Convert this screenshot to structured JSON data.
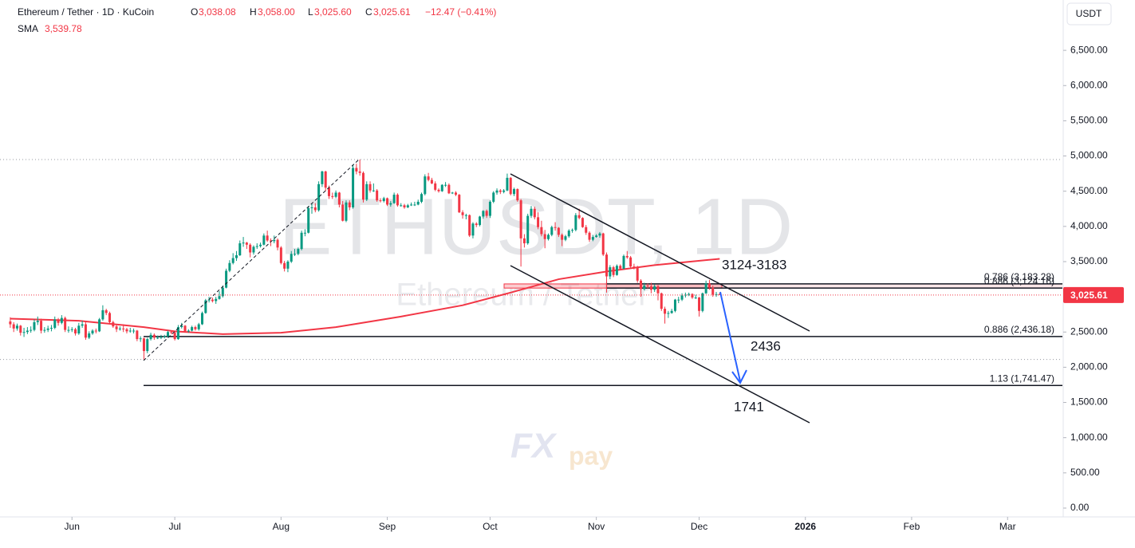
{
  "header": {
    "symbol": "Ethereum / Tether · 1D · KuCoin",
    "open_label": "O",
    "open": "3,038.08",
    "high_label": "H",
    "high": "3,058.00",
    "low_label": "L",
    "low": "3,025.60",
    "close_label": "C",
    "close": "3,025.61",
    "change": "−12.47 (−0.41%)",
    "sma_value": "3,539.78",
    "currency": "USDT"
  },
  "chart_data": {
    "type": "candlestick",
    "watermark": "ETHUSDT, 1D",
    "watermark_sub": "Ethereum / Tether",
    "logo_a": "FX",
    "logo_b": "pay",
    "up_color": "#089981",
    "down_color": "#f23645",
    "xlim": [
      -3,
      307
    ],
    "xticks": [
      {
        "value": 18,
        "label": "Jun"
      },
      {
        "value": 48,
        "label": "Jul"
      },
      {
        "value": 79,
        "label": "Aug"
      },
      {
        "value": 110,
        "label": "Sep"
      },
      {
        "value": 140,
        "label": "Oct"
      },
      {
        "value": 171,
        "label": "Nov"
      },
      {
        "value": 201,
        "label": "Dec"
      },
      {
        "value": 232,
        "label": "2026"
      },
      {
        "value": 263,
        "label": "Feb"
      },
      {
        "value": 291,
        "label": "Mar"
      }
    ],
    "ylim": [
      -125,
      7215
    ],
    "yticks": [
      {
        "value": 0,
        "label": "0.00"
      },
      {
        "value": 500,
        "label": "500.00"
      },
      {
        "value": 1000,
        "label": "1,000.00"
      },
      {
        "value": 1500,
        "label": "1,500.00"
      },
      {
        "value": 2000,
        "label": "2,000.00"
      },
      {
        "value": 2500,
        "label": "2,500.00"
      },
      {
        "value": 3000,
        "label": "3,000.00"
      },
      {
        "value": 3500,
        "label": "3,500.00"
      },
      {
        "value": 4000,
        "label": "4,000.00"
      },
      {
        "value": 4500,
        "label": "4,500.00"
      },
      {
        "value": 5000,
        "label": "5,000.00"
      },
      {
        "value": 5500,
        "label": "5,500.00"
      },
      {
        "value": 6000,
        "label": "6,000.00"
      },
      {
        "value": 6500,
        "label": "6,500.00"
      }
    ],
    "price_label": "3,025.61",
    "sma": {
      "name": "SMA",
      "color": "#f23645",
      "x": [
        0,
        20,
        39,
        48,
        62,
        79,
        95,
        114,
        132,
        146,
        160,
        174,
        188,
        207
      ],
      "values": [
        2690,
        2660,
        2570,
        2510,
        2470,
        2490,
        2570,
        2720,
        2880,
        3060,
        3250,
        3360,
        3450,
        3539.78
      ]
    },
    "levels": [
      {
        "value": 3183.28,
        "label": "0.786 (3,183.28)"
      },
      {
        "value": 3124.16,
        "label": "0.886 (3,124.16)"
      },
      {
        "value": 2436.18,
        "label": "0.886 (2,436.18)"
      },
      {
        "value": 1741.47,
        "label": "1.13 (1,741.47)"
      }
    ],
    "annotations": [
      "3124-3183",
      "2436",
      "1741"
    ],
    "candles": [
      [
        2650,
        2710,
        2560,
        2610
      ],
      [
        2610,
        2640,
        2500,
        2550
      ],
      [
        2550,
        2620,
        2520,
        2590
      ],
      [
        2590,
        2600,
        2450,
        2490
      ],
      [
        2490,
        2560,
        2430,
        2500
      ],
      [
        2500,
        2570,
        2470,
        2520
      ],
      [
        2520,
        2580,
        2490,
        2530
      ],
      [
        2530,
        2680,
        2510,
        2640
      ],
      [
        2640,
        2720,
        2600,
        2660
      ],
      [
        2660,
        2690,
        2480,
        2520
      ],
      [
        2520,
        2570,
        2490,
        2530
      ],
      [
        2530,
        2590,
        2500,
        2550
      ],
      [
        2550,
        2600,
        2510,
        2560
      ],
      [
        2560,
        2720,
        2540,
        2680
      ],
      [
        2680,
        2700,
        2590,
        2630
      ],
      [
        2630,
        2740,
        2610,
        2700
      ],
      [
        2700,
        2720,
        2500,
        2530
      ],
      [
        2530,
        2580,
        2490,
        2530
      ],
      [
        2530,
        2570,
        2500,
        2540
      ],
      [
        2540,
        2560,
        2450,
        2480
      ],
      [
        2480,
        2630,
        2460,
        2590
      ],
      [
        2590,
        2660,
        2560,
        2610
      ],
      [
        2610,
        2640,
        2390,
        2420
      ],
      [
        2420,
        2510,
        2400,
        2480
      ],
      [
        2480,
        2540,
        2460,
        2520
      ],
      [
        2520,
        2550,
        2480,
        2510
      ],
      [
        2510,
        2700,
        2500,
        2680
      ],
      [
        2680,
        2880,
        2660,
        2810
      ],
      [
        2810,
        2830,
        2740,
        2770
      ],
      [
        2770,
        2790,
        2610,
        2640
      ],
      [
        2640,
        2660,
        2560,
        2580
      ],
      [
        2580,
        2600,
        2500,
        2540
      ],
      [
        2540,
        2580,
        2520,
        2550
      ],
      [
        2550,
        2610,
        2500,
        2540
      ],
      [
        2540,
        2560,
        2480,
        2510
      ],
      [
        2510,
        2560,
        2490,
        2520
      ],
      [
        2520,
        2550,
        2480,
        2520
      ],
      [
        2520,
        2530,
        2370,
        2400
      ],
      [
        2400,
        2440,
        2360,
        2410
      ],
      [
        2410,
        2420,
        2110,
        2230
      ],
      [
        2230,
        2420,
        2200,
        2400
      ],
      [
        2400,
        2490,
        2380,
        2460
      ],
      [
        2460,
        2480,
        2390,
        2420
      ],
      [
        2420,
        2450,
        2400,
        2420
      ],
      [
        2420,
        2460,
        2400,
        2430
      ],
      [
        2430,
        2460,
        2410,
        2440
      ],
      [
        2440,
        2520,
        2420,
        2500
      ],
      [
        2500,
        2520,
        2470,
        2490
      ],
      [
        2490,
        2500,
        2380,
        2400
      ],
      [
        2400,
        2600,
        2390,
        2570
      ],
      [
        2570,
        2630,
        2550,
        2590
      ],
      [
        2590,
        2600,
        2490,
        2510
      ],
      [
        2510,
        2540,
        2490,
        2520
      ],
      [
        2520,
        2590,
        2510,
        2570
      ],
      [
        2570,
        2590,
        2520,
        2540
      ],
      [
        2540,
        2630,
        2520,
        2610
      ],
      [
        2610,
        2790,
        2600,
        2770
      ],
      [
        2770,
        2970,
        2760,
        2950
      ],
      [
        2950,
        3000,
        2920,
        2960
      ],
      [
        2960,
        2990,
        2920,
        2940
      ],
      [
        2940,
        3000,
        2900,
        2970
      ],
      [
        2970,
        3080,
        2960,
        3010
      ],
      [
        3010,
        3160,
        2990,
        3130
      ],
      [
        3130,
        3400,
        3120,
        3370
      ],
      [
        3370,
        3520,
        3350,
        3480
      ],
      [
        3480,
        3620,
        3460,
        3550
      ],
      [
        3550,
        3650,
        3510,
        3590
      ],
      [
        3590,
        3800,
        3580,
        3760
      ],
      [
        3760,
        3850,
        3710,
        3770
      ],
      [
        3770,
        3780,
        3680,
        3740
      ],
      [
        3740,
        3760,
        3560,
        3630
      ],
      [
        3630,
        3730,
        3600,
        3710
      ],
      [
        3710,
        3760,
        3680,
        3720
      ],
      [
        3720,
        3770,
        3700,
        3740
      ],
      [
        3740,
        3900,
        3730,
        3870
      ],
      [
        3870,
        3940,
        3780,
        3800
      ],
      [
        3800,
        3830,
        3720,
        3790
      ],
      [
        3790,
        3870,
        3760,
        3810
      ],
      [
        3810,
        3830,
        3660,
        3700
      ],
      [
        3700,
        3720,
        3460,
        3480
      ],
      [
        3480,
        3510,
        3360,
        3400
      ],
      [
        3400,
        3520,
        3350,
        3500
      ],
      [
        3500,
        3650,
        3480,
        3610
      ],
      [
        3610,
        3680,
        3580,
        3610
      ],
      [
        3610,
        3700,
        3590,
        3680
      ],
      [
        3680,
        3940,
        3660,
        3910
      ],
      [
        3910,
        3960,
        3860,
        3910
      ],
      [
        3910,
        4290,
        3900,
        4260
      ],
      [
        4260,
        4320,
        4180,
        4270
      ],
      [
        4270,
        4330,
        4200,
        4230
      ],
      [
        4230,
        4640,
        4210,
        4600
      ],
      [
        4600,
        4790,
        4560,
        4780
      ],
      [
        4780,
        4790,
        4500,
        4550
      ],
      [
        4550,
        4580,
        4390,
        4430
      ],
      [
        4430,
        4480,
        4390,
        4420
      ],
      [
        4420,
        4510,
        4400,
        4480
      ],
      [
        4480,
        4490,
        4270,
        4310
      ],
      [
        4310,
        4360,
        4070,
        4080
      ],
      [
        4080,
        4370,
        4060,
        4340
      ],
      [
        4340,
        4370,
        4230,
        4270
      ],
      [
        4270,
        4880,
        4250,
        4830
      ],
      [
        4830,
        4890,
        4740,
        4780
      ],
      [
        4780,
        4950,
        4720,
        4760
      ],
      [
        4760,
        4780,
        4340,
        4380
      ],
      [
        4380,
        4640,
        4360,
        4600
      ],
      [
        4600,
        4640,
        4480,
        4510
      ],
      [
        4510,
        4610,
        4490,
        4510
      ],
      [
        4510,
        4530,
        4350,
        4370
      ],
      [
        4370,
        4400,
        4340,
        4360
      ],
      [
        4360,
        4420,
        4340,
        4400
      ],
      [
        4400,
        4410,
        4290,
        4310
      ],
      [
        4310,
        4360,
        4280,
        4330
      ],
      [
        4330,
        4480,
        4320,
        4450
      ],
      [
        4450,
        4470,
        4280,
        4300
      ],
      [
        4300,
        4330,
        4280,
        4300
      ],
      [
        4300,
        4320,
        4250,
        4270
      ],
      [
        4270,
        4320,
        4260,
        4300
      ],
      [
        4300,
        4340,
        4290,
        4310
      ],
      [
        4310,
        4350,
        4290,
        4310
      ],
      [
        4310,
        4380,
        4300,
        4350
      ],
      [
        4350,
        4480,
        4330,
        4460
      ],
      [
        4460,
        4740,
        4440,
        4710
      ],
      [
        4710,
        4760,
        4640,
        4660
      ],
      [
        4660,
        4690,
        4600,
        4610
      ],
      [
        4610,
        4640,
        4500,
        4520
      ],
      [
        4520,
        4540,
        4480,
        4500
      ],
      [
        4500,
        4600,
        4490,
        4590
      ],
      [
        4590,
        4630,
        4560,
        4590
      ],
      [
        4590,
        4610,
        4460,
        4470
      ],
      [
        4470,
        4490,
        4460,
        4480
      ],
      [
        4480,
        4500,
        4430,
        4450
      ],
      [
        4450,
        4460,
        4190,
        4200
      ],
      [
        4200,
        4230,
        4110,
        4160
      ],
      [
        4160,
        4180,
        4100,
        4160
      ],
      [
        4160,
        4170,
        3850,
        3870
      ],
      [
        3870,
        4060,
        3830,
        4040
      ],
      [
        4040,
        4060,
        3990,
        4020
      ],
      [
        4020,
        4150,
        4000,
        4140
      ],
      [
        4140,
        4230,
        4110,
        4220
      ],
      [
        4220,
        4240,
        4120,
        4150
      ],
      [
        4150,
        4370,
        4120,
        4350
      ],
      [
        4350,
        4500,
        4330,
        4480
      ],
      [
        4480,
        4540,
        4450,
        4510
      ],
      [
        4510,
        4530,
        4460,
        4490
      ],
      [
        4490,
        4530,
        4470,
        4510
      ],
      [
        4510,
        4750,
        4500,
        4690
      ],
      [
        4690,
        4700,
        4440,
        4460
      ],
      [
        4460,
        4550,
        4430,
        4530
      ],
      [
        4530,
        4540,
        4350,
        4370
      ],
      [
        4370,
        4390,
        3430,
        3830
      ],
      [
        3830,
        3890,
        3700,
        3760
      ],
      [
        3760,
        4180,
        3740,
        4150
      ],
      [
        4150,
        4290,
        4120,
        4250
      ],
      [
        4250,
        4280,
        4100,
        4130
      ],
      [
        4130,
        4200,
        3960,
        3990
      ],
      [
        3990,
        4080,
        3860,
        3890
      ],
      [
        3890,
        3950,
        3690,
        3820
      ],
      [
        3820,
        3900,
        3800,
        3880
      ],
      [
        3880,
        4010,
        3860,
        3990
      ],
      [
        3990,
        4060,
        3940,
        3980
      ],
      [
        3980,
        3990,
        3850,
        3880
      ],
      [
        3880,
        3900,
        3720,
        3810
      ],
      [
        3810,
        3880,
        3790,
        3860
      ],
      [
        3860,
        3960,
        3840,
        3940
      ],
      [
        3940,
        3970,
        3910,
        3950
      ],
      [
        3950,
        4190,
        3930,
        4160
      ],
      [
        4160,
        4250,
        4100,
        4120
      ],
      [
        4120,
        4130,
        3980,
        3990
      ],
      [
        3990,
        4020,
        3880,
        3910
      ],
      [
        3910,
        3930,
        3780,
        3810
      ],
      [
        3810,
        3880,
        3790,
        3850
      ],
      [
        3850,
        3890,
        3840,
        3870
      ],
      [
        3870,
        3920,
        3840,
        3900
      ],
      [
        3900,
        3910,
        3580,
        3600
      ],
      [
        3600,
        3630,
        3060,
        3290
      ],
      [
        3290,
        3450,
        3250,
        3420
      ],
      [
        3420,
        3440,
        3280,
        3310
      ],
      [
        3310,
        3460,
        3300,
        3440
      ],
      [
        3440,
        3460,
        3380,
        3400
      ],
      [
        3400,
        3600,
        3390,
        3580
      ],
      [
        3580,
        3650,
        3540,
        3560
      ],
      [
        3560,
        3580,
        3410,
        3430
      ],
      [
        3430,
        3470,
        3390,
        3410
      ],
      [
        3410,
        3440,
        3200,
        3230
      ],
      [
        3230,
        3250,
        3000,
        3110
      ],
      [
        3110,
        3200,
        3090,
        3160
      ],
      [
        3160,
        3190,
        3120,
        3150
      ],
      [
        3150,
        3200,
        3050,
        3100
      ],
      [
        3100,
        3180,
        3070,
        3150
      ],
      [
        3150,
        3170,
        2950,
        3050
      ],
      [
        3050,
        3060,
        2800,
        2830
      ],
      [
        2830,
        2860,
        2620,
        2760
      ],
      [
        2760,
        2800,
        2700,
        2770
      ],
      [
        2770,
        2830,
        2760,
        2800
      ],
      [
        2800,
        2970,
        2780,
        2960
      ],
      [
        2960,
        3000,
        2910,
        2960
      ],
      [
        2960,
        3050,
        2940,
        3020
      ],
      [
        3020,
        3060,
        2990,
        3030
      ],
      [
        3030,
        3060,
        3010,
        3040
      ],
      [
        3040,
        3050,
        2970,
        2990
      ],
      [
        2990,
        3030,
        2970,
        2990
      ],
      [
        2990,
        3000,
        2720,
        2800
      ],
      [
        2800,
        3060,
        2780,
        3050
      ],
      [
        3050,
        3230,
        3040,
        3190
      ],
      [
        3190,
        3240,
        3100,
        3130
      ],
      [
        3130,
        3160,
        3000,
        3030
      ],
      [
        3030,
        3070,
        3000,
        3038.08
      ],
      [
        3038.08,
        3058,
        3025.6,
        3025.61
      ]
    ]
  }
}
